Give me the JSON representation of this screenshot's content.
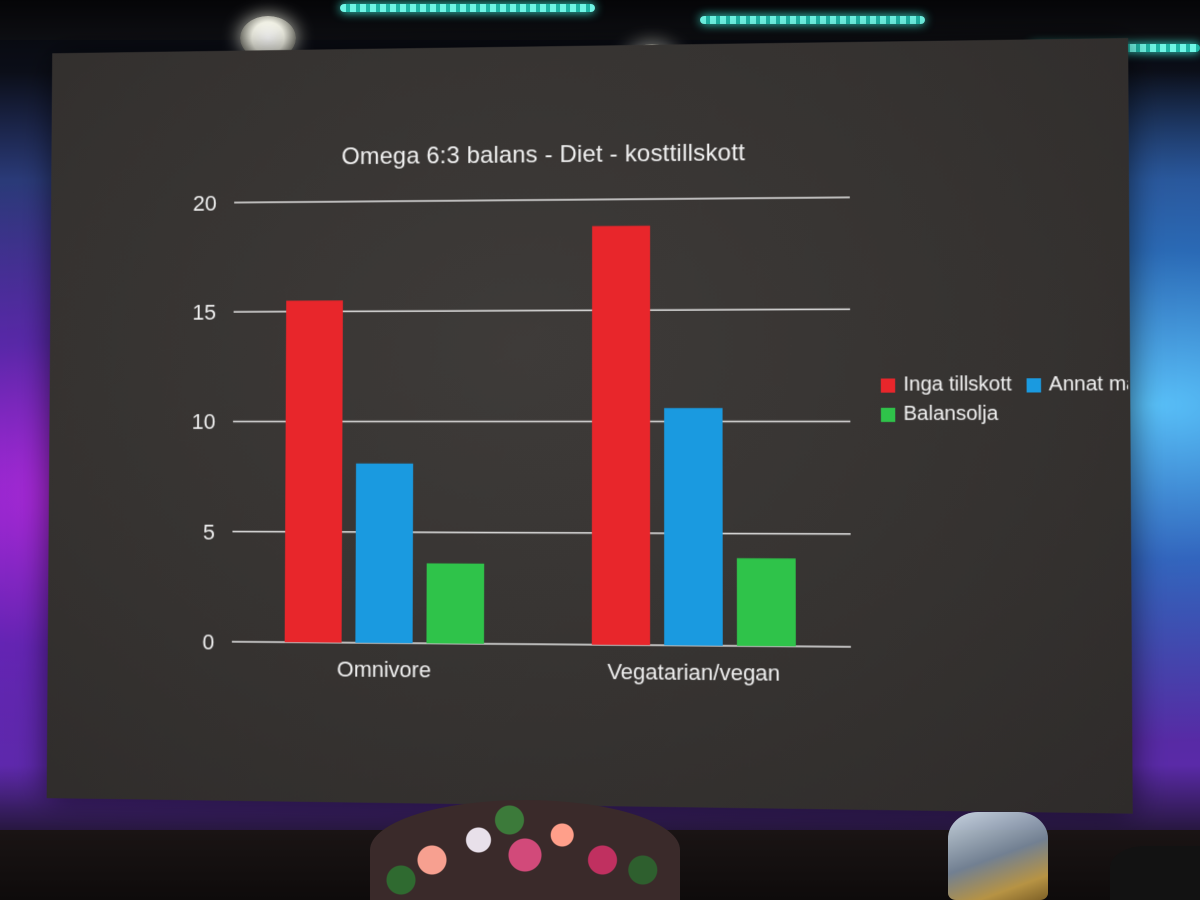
{
  "chart_data": {
    "type": "bar",
    "title": "Omega 6:3 balans - Diet - kosttillskott",
    "categories": [
      "Omnivore",
      "Vegatarian/vegan"
    ],
    "series": [
      {
        "name": "Inga tillskott",
        "color": "#e8262b",
        "values": [
          15.5,
          18.8
        ]
      },
      {
        "name": "Annat mä",
        "color": "#1a9ae0",
        "values": [
          8.1,
          10.6
        ]
      },
      {
        "name": "Balansolja",
        "color": "#2fc34a",
        "values": [
          3.6,
          3.9
        ]
      }
    ],
    "yticks": [
      "0",
      "5",
      "10",
      "15",
      "20"
    ],
    "ylim": [
      0,
      20
    ],
    "grid": true,
    "legend_position": "right"
  }
}
